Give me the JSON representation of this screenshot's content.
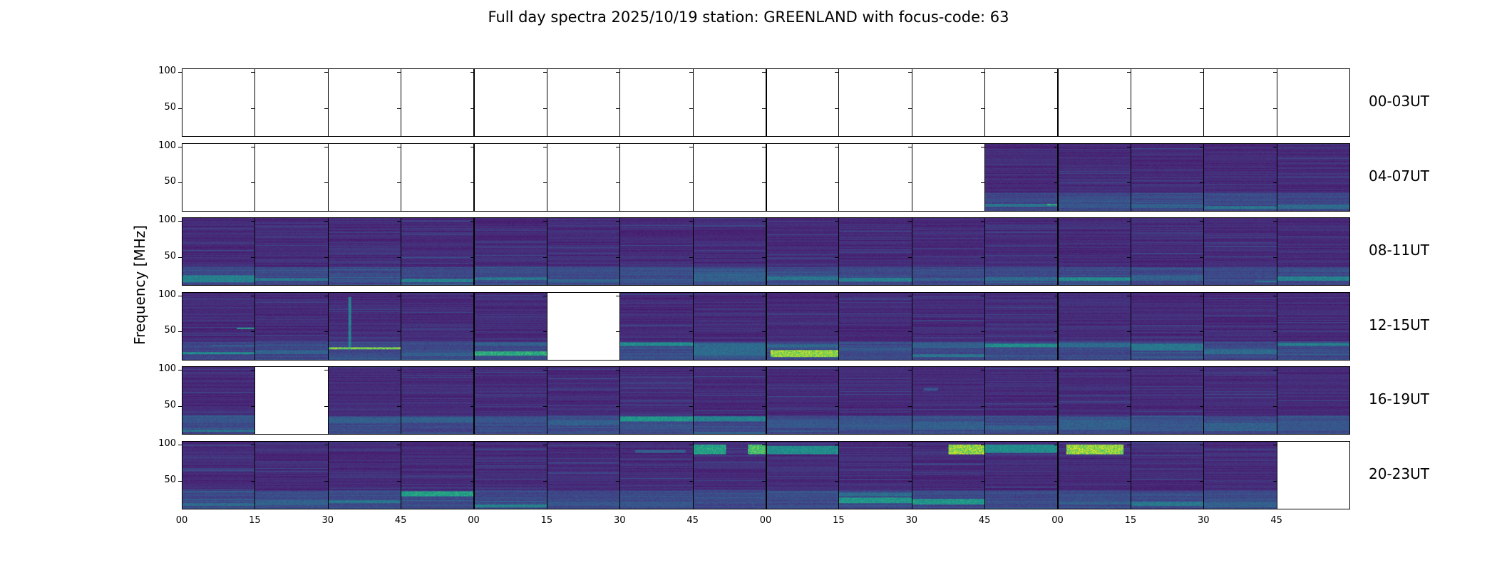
{
  "title": "Full day spectra 2025/10/19 station: GREENLAND with focus-code: 63",
  "chart_data": {
    "type": "heatmap",
    "title": "Full day spectra 2025/10/19 station: GREENLAND with focus-code: 63",
    "ylabel": "Frequency [MHz]",
    "xlabel": "",
    "ylim": [
      10,
      105
    ],
    "yticks": [
      "100",
      "50"
    ],
    "ytick_values": [
      100,
      50
    ],
    "xticks": [
      "00",
      "15",
      "30",
      "45",
      "00",
      "15",
      "30",
      "45",
      "00",
      "15",
      "30",
      "45",
      "00",
      "15",
      "30",
      "45"
    ],
    "colormap": "viridis",
    "grid": false,
    "panels_per_row": 16,
    "panel_minutes": 15,
    "rows": [
      {
        "label": "00-03UT",
        "panels": [
          {
            "empty": true
          },
          {
            "empty": true
          },
          {
            "empty": true
          },
          {
            "empty": true
          },
          {
            "empty": true
          },
          {
            "empty": true
          },
          {
            "empty": true
          },
          {
            "empty": true
          },
          {
            "empty": true
          },
          {
            "empty": true
          },
          {
            "empty": true
          },
          {
            "empty": true
          },
          {
            "empty": true
          },
          {
            "empty": true
          },
          {
            "empty": true
          },
          {
            "empty": true
          }
        ]
      },
      {
        "label": "04-07UT",
        "panels": [
          {
            "empty": true
          },
          {
            "empty": true
          },
          {
            "empty": true
          },
          {
            "empty": true
          },
          {
            "empty": true
          },
          {
            "empty": true
          },
          {
            "empty": true
          },
          {
            "empty": true
          },
          {
            "empty": true
          },
          {
            "empty": true
          },
          {
            "empty": true
          },
          {
            "empty": false,
            "bands": [
              [
                16,
                20,
                0.45,
                0.0,
                1.0
              ],
              [
                18,
                20,
                0.75,
                0.85,
                1.0
              ]
            ]
          },
          {
            "empty": false,
            "bands": [
              [
                14,
                20,
                0.3,
                0.0,
                1.0
              ]
            ]
          },
          {
            "empty": false,
            "bands": [
              [
                14,
                20,
                0.35,
                0.0,
                1.0
              ]
            ]
          },
          {
            "empty": false,
            "bands": [
              [
                13,
                17,
                0.45,
                0.0,
                1.0
              ]
            ]
          },
          {
            "empty": false,
            "bands": [
              [
                13,
                19,
                0.4,
                0.0,
                1.0
              ]
            ]
          }
        ]
      },
      {
        "label": "08-11UT",
        "panels": [
          {
            "empty": false,
            "bands": [
              [
                14,
                24,
                0.5,
                0.0,
                1.0
              ]
            ]
          },
          {
            "empty": false,
            "bands": [
              [
                16,
                20,
                0.45,
                0.0,
                1.0
              ]
            ]
          },
          {
            "empty": false,
            "bands": [
              [
                14,
                19,
                0.3,
                0.0,
                1.0
              ]
            ]
          },
          {
            "empty": false,
            "bands": [
              [
                14,
                19,
                0.5,
                0.0,
                1.0
              ]
            ]
          },
          {
            "empty": false,
            "bands": [
              [
                17,
                21,
                0.45,
                0.0,
                1.0
              ]
            ]
          },
          {
            "empty": false,
            "bands": [
              [
                14,
                19,
                0.35,
                0.0,
                1.0
              ]
            ]
          },
          {
            "empty": false,
            "bands": [
              [
                14,
                18,
                0.3,
                0.0,
                1.0
              ]
            ]
          },
          {
            "empty": false,
            "bands": [
              [
                15,
                21,
                0.35,
                0.0,
                1.0
              ]
            ]
          },
          {
            "empty": false,
            "bands": [
              [
                17,
                22,
                0.45,
                0.0,
                1.0
              ]
            ]
          },
          {
            "empty": false,
            "bands": [
              [
                15,
                20,
                0.5,
                0.0,
                1.0
              ]
            ]
          },
          {
            "empty": false,
            "bands": [
              [
                16,
                20,
                0.35,
                0.0,
                1.0
              ]
            ]
          },
          {
            "empty": false,
            "bands": [
              [
                16,
                21,
                0.4,
                0.0,
                1.0
              ]
            ]
          },
          {
            "empty": false,
            "bands": [
              [
                16,
                21,
                0.55,
                0.0,
                1.0
              ]
            ]
          },
          {
            "empty": false,
            "bands": [
              [
                16,
                24,
                0.35,
                0.0,
                1.0
              ]
            ]
          },
          {
            "empty": false,
            "bands": [
              [
                14,
                16,
                0.45,
                0.7,
                1.0
              ]
            ]
          },
          {
            "empty": false,
            "bands": [
              [
                16,
                22,
                0.5,
                0.0,
                1.0
              ]
            ]
          }
        ]
      },
      {
        "label": "12-15UT",
        "panels": [
          {
            "empty": false,
            "bands": [
              [
                18,
                21,
                0.55,
                0.0,
                1.0
              ],
              [
                54,
                56,
                0.65,
                0.75,
                1.0
              ],
              [
                30,
                31,
                0.45,
                0.4,
                1.0
              ]
            ]
          },
          {
            "empty": false,
            "bands": [
              [
                18,
                24,
                0.35,
                0.0,
                1.0
              ],
              [
                30,
                32,
                0.3,
                0.0,
                1.0
              ]
            ]
          },
          {
            "empty": false,
            "bands": [
              [
                25,
                28,
                0.9,
                0.0,
                1.0
              ],
              [
                28,
                100,
                0.5,
                0.27,
                0.31
              ]
            ]
          },
          {
            "empty": false,
            "bands": [
              [
                15,
                20,
                0.35,
                0.0,
                1.0
              ]
            ]
          },
          {
            "empty": false,
            "bands": [
              [
                16,
                22,
                0.7,
                0.0,
                1.0
              ],
              [
                30,
                34,
                0.35,
                0.0,
                1.0
              ]
            ]
          },
          {
            "empty": true
          },
          {
            "empty": false,
            "bands": [
              [
                30,
                35,
                0.55,
                0.0,
                1.0
              ]
            ]
          },
          {
            "empty": false,
            "bands": [
              [
                16,
                34,
                0.4,
                0.0,
                1.0
              ]
            ]
          },
          {
            "empty": false,
            "bands": [
              [
                14,
                24,
                0.95,
                0.05,
                1.0
              ],
              [
                28,
                32,
                0.4,
                0.0,
                1.0
              ]
            ]
          },
          {
            "empty": false,
            "bands": [
              [
                22,
                26,
                0.3,
                0.0,
                1.0
              ]
            ]
          },
          {
            "empty": false,
            "bands": [
              [
                14,
                18,
                0.45,
                0.0,
                1.0
              ],
              [
                28,
                34,
                0.35,
                0.0,
                1.0
              ]
            ]
          },
          {
            "empty": false,
            "bands": [
              [
                28,
                33,
                0.55,
                0.0,
                1.0
              ]
            ]
          },
          {
            "empty": false,
            "bands": [
              [
                28,
                34,
                0.4,
                0.0,
                1.0
              ]
            ]
          },
          {
            "empty": false,
            "bands": [
              [
                24,
                33,
                0.45,
                0.0,
                1.0
              ]
            ]
          },
          {
            "empty": false,
            "bands": [
              [
                18,
                24,
                0.4,
                0.0,
                1.0
              ]
            ]
          },
          {
            "empty": false,
            "bands": [
              [
                30,
                34,
                0.5,
                0.0,
                1.0
              ]
            ]
          }
        ]
      },
      {
        "label": "16-19UT",
        "panels": [
          {
            "empty": false,
            "bands": [
              [
                13,
                16,
                0.45,
                0.0,
                1.0
              ],
              [
                26,
                36,
                0.3,
                0.0,
                1.0
              ]
            ]
          },
          {
            "empty": true
          },
          {
            "empty": false,
            "bands": [
              [
                26,
                34,
                0.35,
                0.0,
                1.0
              ]
            ]
          },
          {
            "empty": false,
            "bands": [
              [
                26,
                34,
                0.35,
                0.0,
                1.0
              ]
            ]
          },
          {
            "empty": false,
            "bands": [
              [
                26,
                34,
                0.3,
                0.0,
                1.0
              ]
            ]
          },
          {
            "empty": false,
            "bands": [
              [
                22,
                30,
                0.35,
                0.0,
                1.0
              ]
            ]
          },
          {
            "empty": false,
            "bands": [
              [
                28,
                35,
                0.6,
                0.0,
                1.0
              ]
            ]
          },
          {
            "empty": false,
            "bands": [
              [
                28,
                35,
                0.5,
                0.0,
                1.0
              ]
            ]
          },
          {
            "empty": false,
            "bands": [
              [
                18,
                30,
                0.3,
                0.0,
                1.0
              ]
            ]
          },
          {
            "empty": false,
            "bands": [
              [
                16,
                28,
                0.3,
                0.0,
                1.0
              ]
            ]
          },
          {
            "empty": false,
            "bands": [
              [
                16,
                28,
                0.35,
                0.0,
                1.0
              ],
              [
                72,
                76,
                0.3,
                0.15,
                0.35
              ]
            ]
          },
          {
            "empty": false,
            "bands": [
              [
                16,
                22,
                0.35,
                0.0,
                1.0
              ]
            ]
          },
          {
            "empty": false,
            "bands": [
              [
                16,
                30,
                0.35,
                0.0,
                1.0
              ]
            ]
          },
          {
            "empty": false,
            "bands": [
              [
                16,
                30,
                0.3,
                0.0,
                1.0
              ]
            ]
          },
          {
            "empty": false,
            "bands": [
              [
                14,
                26,
                0.35,
                0.0,
                1.0
              ]
            ]
          },
          {
            "empty": false,
            "bands": [
              [
                14,
                28,
                0.3,
                0.0,
                1.0
              ]
            ]
          }
        ]
      },
      {
        "label": "20-23UT",
        "panels": [
          {
            "empty": false,
            "bands": [
              [
                14,
                18,
                0.4,
                0.0,
                1.0
              ]
            ]
          },
          {
            "empty": false,
            "bands": [
              [
                15,
                22,
                0.35,
                0.0,
                1.0
              ]
            ]
          },
          {
            "empty": false,
            "bands": [
              [
                18,
                22,
                0.45,
                0.0,
                1.0
              ]
            ]
          },
          {
            "empty": false,
            "bands": [
              [
                28,
                35,
                0.65,
                0.0,
                1.0
              ]
            ]
          },
          {
            "empty": false,
            "bands": [
              [
                12,
                16,
                0.5,
                0.0,
                1.0
              ]
            ]
          },
          {
            "empty": false,
            "bands": [
              [
                14,
                20,
                0.3,
                0.0,
                1.0
              ]
            ]
          },
          {
            "empty": false,
            "bands": [
              [
                14,
                20,
                0.3,
                0.0,
                1.0
              ],
              [
                90,
                94,
                0.35,
                0.2,
                0.9
              ]
            ]
          },
          {
            "empty": false,
            "bands": [
              [
                88,
                102,
                0.65,
                0.0,
                0.45
              ],
              [
                88,
                102,
                0.8,
                0.75,
                1.0
              ]
            ]
          },
          {
            "empty": false,
            "bands": [
              [
                88,
                100,
                0.55,
                0.0,
                1.0
              ]
            ]
          },
          {
            "empty": false,
            "bands": [
              [
                18,
                26,
                0.6,
                0.0,
                1.0
              ],
              [
                28,
                33,
                0.4,
                0.0,
                1.0
              ]
            ]
          },
          {
            "empty": false,
            "bands": [
              [
                16,
                24,
                0.6,
                0.0,
                1.0
              ],
              [
                88,
                102,
                0.95,
                0.5,
                1.0
              ]
            ]
          },
          {
            "empty": false,
            "bands": [
              [
                90,
                102,
                0.55,
                0.0,
                1.0
              ]
            ]
          },
          {
            "empty": false,
            "bands": [
              [
                88,
                102,
                0.95,
                0.1,
                0.9
              ],
              [
                16,
                20,
                0.35,
                0.0,
                1.0
              ]
            ]
          },
          {
            "empty": false,
            "bands": [
              [
                14,
                20,
                0.45,
                0.0,
                1.0
              ]
            ]
          },
          {
            "empty": false,
            "bands": [
              [
                12,
                20,
                0.35,
                0.0,
                1.0
              ]
            ]
          },
          {
            "empty": true
          }
        ]
      }
    ]
  }
}
